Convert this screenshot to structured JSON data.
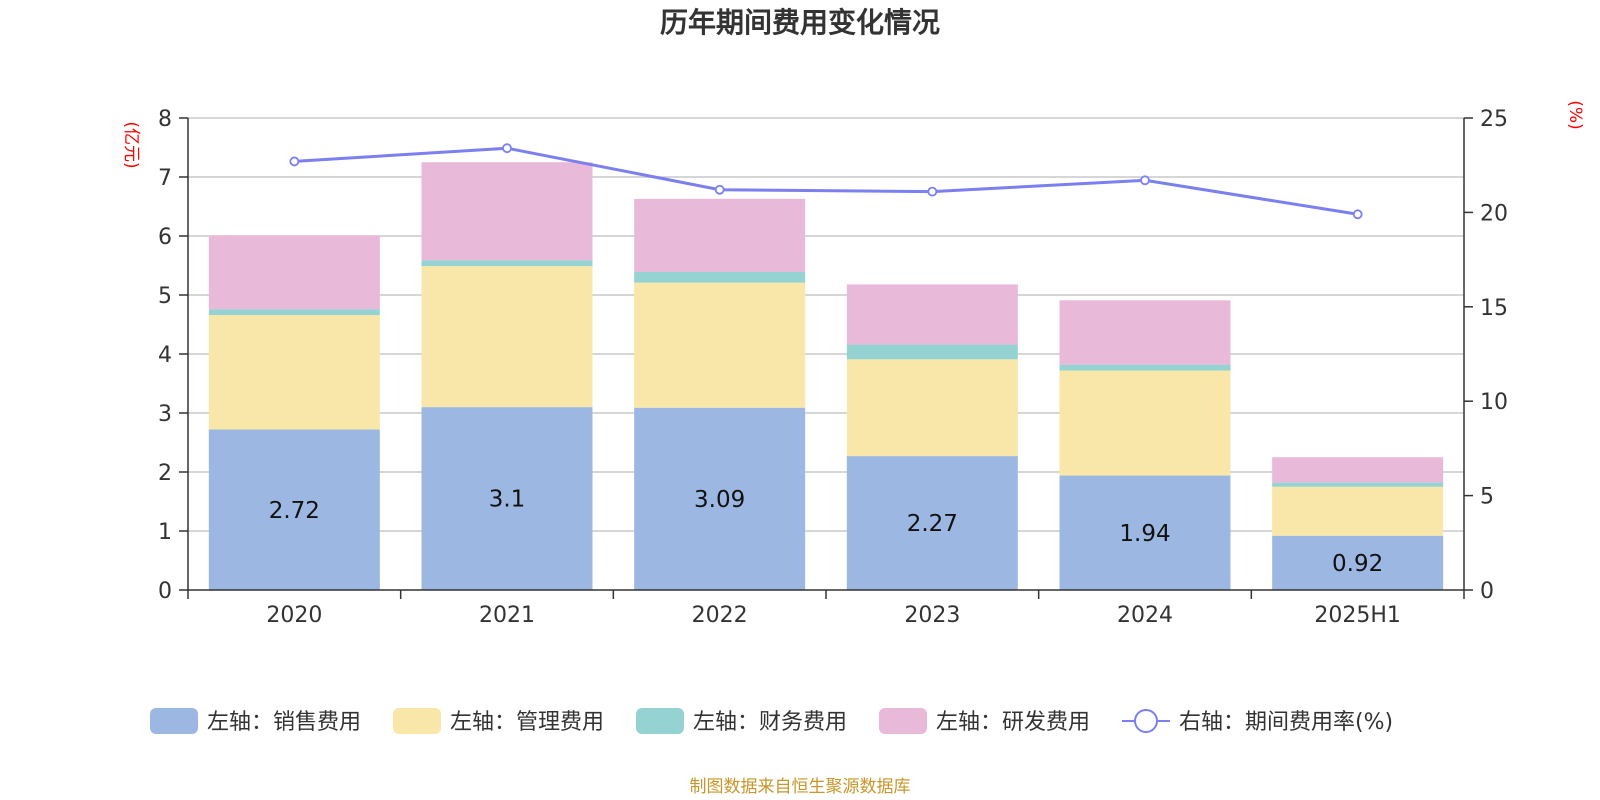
{
  "chart_data": {
    "type": "bar",
    "stacked": true,
    "title": "历年期间费用变化情况",
    "categories": [
      "2020",
      "2021",
      "2022",
      "2023",
      "2024",
      "2025H1"
    ],
    "left_axis": {
      "unit": "(亿元)",
      "ylim": [
        0,
        8
      ],
      "ticks": [
        "0",
        "1",
        "2",
        "3",
        "4",
        "5",
        "6",
        "7",
        "8"
      ]
    },
    "right_axis": {
      "unit": "(%)",
      "ylim": [
        0,
        25
      ],
      "ticks": [
        "0",
        "5",
        "10",
        "15",
        "20",
        "25"
      ]
    },
    "series": [
      {
        "name": "左轴：销售费用",
        "axis": "left",
        "color": "#9cb8e2",
        "values": [
          2.72,
          3.1,
          3.09,
          2.27,
          1.94,
          0.92
        ],
        "labels": [
          "2.72",
          "3.1",
          "3.09",
          "2.27",
          "1.94",
          "0.92"
        ]
      },
      {
        "name": "左轴：管理费用",
        "axis": "left",
        "color": "#f8e7a8",
        "values": [
          1.94,
          2.39,
          2.12,
          1.64,
          1.78,
          0.83
        ]
      },
      {
        "name": "左轴：财务费用",
        "axis": "left",
        "color": "#95d2d2",
        "values": [
          0.1,
          0.1,
          0.18,
          0.25,
          0.1,
          0.07
        ]
      },
      {
        "name": "左轴：研发费用",
        "axis": "left",
        "color": "#e8b9d8",
        "values": [
          1.25,
          1.66,
          1.24,
          1.02,
          1.09,
          0.43
        ]
      },
      {
        "name": "右轴：期间费用率(%)",
        "axis": "right",
        "type": "line",
        "color": "#7b7ff0",
        "values": [
          22.7,
          23.4,
          21.2,
          21.1,
          21.7,
          19.9
        ]
      }
    ],
    "grid": true,
    "legend_position": "bottom"
  },
  "source": "制图数据来自恒生聚源数据库"
}
